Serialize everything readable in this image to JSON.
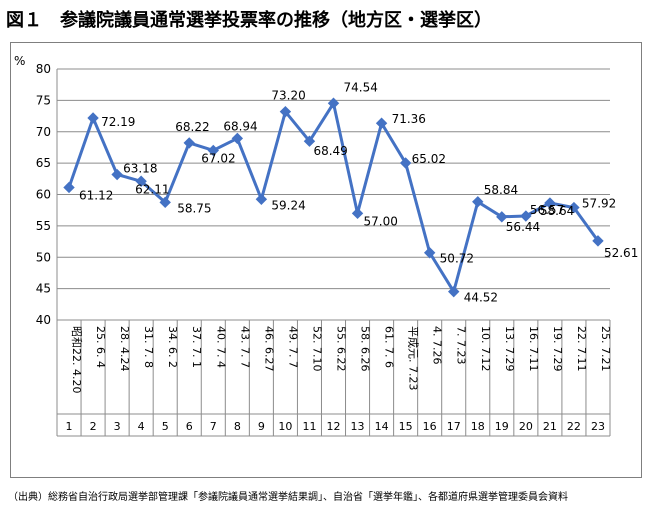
{
  "title": "図１　参議院議員通常選挙投票率の推移（地方区・選挙区）",
  "source": "（出典）総務省自治行政局選挙部管理課「参議院議員通常選挙結果調」、自治省「選挙年鑑」、各都道府県選挙管理委員会資料",
  "chart_data": {
    "type": "line",
    "ylabel": "%",
    "ylim": [
      40,
      80
    ],
    "yticks": [
      40,
      45,
      50,
      55,
      60,
      65,
      70,
      75,
      80
    ],
    "grid": true,
    "categories": [
      "1",
      "2",
      "3",
      "4",
      "5",
      "6",
      "7",
      "8",
      "9",
      "10",
      "11",
      "12",
      "13",
      "14",
      "15",
      "16",
      "17",
      "18",
      "19",
      "20",
      "21",
      "22",
      "23"
    ],
    "dates": [
      "昭和22. 4.20",
      "25. 6. 4",
      "28. 4.24",
      "31. 7. 8",
      "34. 6. 2",
      "37. 7. 1",
      "40. 7. 4",
      "43. 7. 7",
      "46. 6.27",
      "49. 7. 7",
      "52. 7.10",
      "55. 6.22",
      "58. 6.26",
      "61. 7. 6",
      "平成元. 7.23",
      "4. 7.26",
      "7. 7.23",
      "10. 7.12",
      "13. 7.29",
      "16. 7.11",
      "19. 7.29",
      "22. 7.11",
      "25. 7.21"
    ],
    "values": [
      61.12,
      72.19,
      63.18,
      62.11,
      58.75,
      68.22,
      67.02,
      68.94,
      59.24,
      73.2,
      68.49,
      74.54,
      57.0,
      71.36,
      65.02,
      50.72,
      44.52,
      58.84,
      56.44,
      56.57,
      58.64,
      57.92,
      52.61
    ],
    "value_labels": [
      "61.12",
      "72.19",
      "63.18",
      "62.11",
      "58.75",
      "68.22",
      "67.02",
      "68.94",
      "59.24",
      "73.20",
      "68.49",
      "74.54",
      "57.00",
      "71.36",
      "65.02",
      "50.72",
      "44.52",
      "58.84",
      "56.44",
      "56.57",
      "58.64",
      "57.92",
      "52.61"
    ],
    "series_color": "#4472c4"
  }
}
